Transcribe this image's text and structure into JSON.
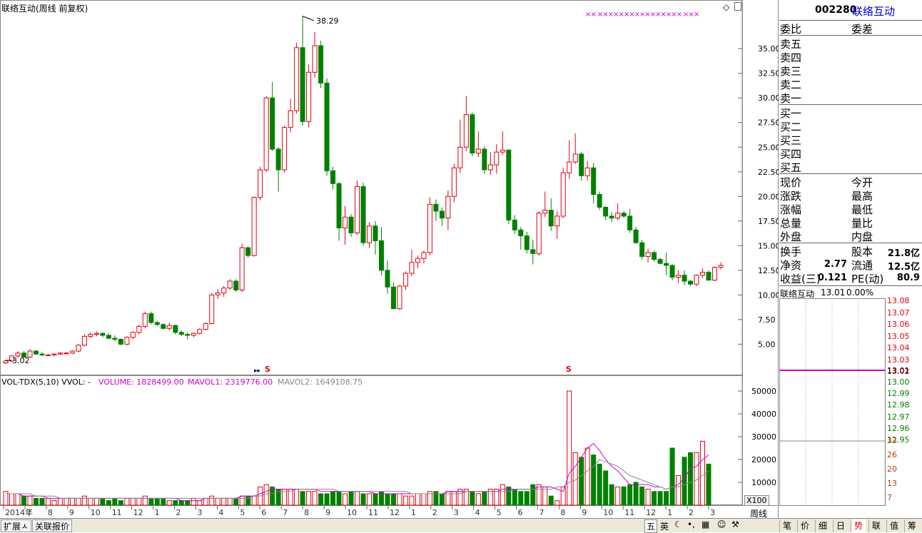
{
  "stock": {
    "code": "002280",
    "name": "联络互动"
  },
  "chart_title": "联络互动(周线 前复权)",
  "price_chart": {
    "high_label": "38.29",
    "low_label": "3.02",
    "y_ticks": [
      "35.00",
      "32.50",
      "30.00",
      "27.50",
      "25.00",
      "22.50",
      "20.00",
      "17.50",
      "15.00",
      "12.50",
      "10.00",
      "7.50",
      "5.00"
    ],
    "x_axis_labels": [
      "2014年",
      "7",
      "8",
      "9",
      "10",
      "11",
      "12",
      "1",
      "2",
      "3",
      "4",
      "5",
      "6",
      "7",
      "8",
      "9",
      "10",
      "11",
      "12",
      "1",
      "2",
      "3",
      "4",
      "5",
      "6",
      "7",
      "8",
      "9",
      "10",
      "11",
      "12",
      "1",
      "2",
      "3"
    ],
    "marker": "S",
    "markers_top": "××  ××××××××××××××××  ×××"
  },
  "volume_chart": {
    "label": "VOL-TDX(5,10) VVOL: -",
    "volume": "VOLUME: 1828499.00",
    "mavol1": "MAVOL1: 2319776.00",
    "mavol2": "MAVOL2: 1649108.75",
    "y_ticks": [
      "50000",
      "40000",
      "30000",
      "20000",
      "10000"
    ],
    "unit": "X100",
    "period": "周线"
  },
  "chart_data": {
    "type": "candlestick",
    "title": "联络互动(周线 前复权)",
    "ylim": [
      3,
      38.5
    ],
    "candles": [
      [
        3.1,
        3.4,
        3.0,
        3.3
      ],
      [
        3.3,
        3.9,
        3.2,
        3.8
      ],
      [
        3.8,
        4.3,
        3.6,
        4.1
      ],
      [
        4.1,
        4.3,
        3.6,
        3.7
      ],
      [
        3.7,
        4.5,
        3.6,
        4.3
      ],
      [
        4.3,
        4.4,
        3.9,
        4.0
      ],
      [
        4.0,
        4.2,
        3.8,
        3.9
      ],
      [
        3.9,
        4.0,
        3.8,
        3.9
      ],
      [
        3.9,
        4.1,
        3.8,
        4.0
      ],
      [
        4.0,
        4.2,
        3.9,
        4.1
      ],
      [
        4.1,
        4.2,
        4.0,
        4.1
      ],
      [
        4.1,
        4.4,
        4.0,
        4.3
      ],
      [
        4.3,
        5.0,
        4.2,
        4.9
      ],
      [
        4.9,
        6.0,
        4.8,
        5.8
      ],
      [
        5.8,
        6.2,
        5.6,
        6.0
      ],
      [
        6.0,
        6.3,
        5.8,
        6.1
      ],
      [
        6.1,
        6.2,
        5.7,
        5.9
      ],
      [
        5.9,
        6.1,
        5.5,
        5.6
      ],
      [
        5.6,
        5.9,
        5.3,
        5.5
      ],
      [
        5.5,
        5.6,
        4.9,
        5.0
      ],
      [
        5.0,
        5.8,
        4.9,
        5.7
      ],
      [
        5.7,
        6.3,
        5.5,
        6.2
      ],
      [
        6.2,
        7.0,
        6.0,
        6.8
      ],
      [
        6.8,
        8.3,
        6.6,
        8.1
      ],
      [
        8.1,
        8.3,
        7.0,
        7.2
      ],
      [
        7.2,
        7.4,
        6.8,
        7.0
      ],
      [
        7.0,
        7.1,
        6.5,
        6.6
      ],
      [
        6.6,
        7.2,
        6.4,
        6.9
      ],
      [
        6.9,
        7.0,
        6.0,
        6.2
      ],
      [
        6.2,
        6.4,
        5.8,
        6.0
      ],
      [
        6.0,
        6.2,
        5.5,
        5.9
      ],
      [
        5.9,
        6.2,
        5.7,
        6.1
      ],
      [
        6.1,
        6.6,
        6.0,
        6.5
      ],
      [
        6.5,
        7.2,
        6.4,
        7.1
      ],
      [
        7.1,
        10.2,
        7.0,
        10.0
      ],
      [
        10.0,
        10.6,
        9.6,
        10.2
      ],
      [
        10.2,
        10.9,
        9.8,
        10.7
      ],
      [
        10.7,
        11.6,
        10.5,
        11.4
      ],
      [
        11.4,
        11.6,
        10.3,
        10.5
      ],
      [
        10.5,
        15.2,
        10.3,
        14.8
      ],
      [
        14.8,
        14.9,
        13.8,
        14.0
      ],
      [
        14.0,
        20.0,
        13.9,
        19.9
      ],
      [
        19.9,
        23.0,
        19.6,
        22.7
      ],
      [
        22.7,
        30.2,
        22.5,
        30.0
      ],
      [
        30.0,
        31.6,
        24.6,
        24.8
      ],
      [
        24.8,
        25.0,
        20.5,
        22.7
      ],
      [
        22.7,
        27.2,
        22.4,
        27.0
      ],
      [
        27.0,
        29.9,
        26.5,
        28.7
      ],
      [
        28.7,
        35.6,
        28.4,
        35.1
      ],
      [
        35.1,
        38.3,
        27.2,
        27.6
      ],
      [
        27.6,
        33.4,
        27.0,
        32.6
      ],
      [
        32.6,
        36.7,
        32.1,
        35.3
      ],
      [
        35.3,
        35.8,
        31.0,
        31.5
      ],
      [
        31.5,
        32.0,
        22.1,
        22.6
      ],
      [
        22.6,
        23.0,
        20.7,
        21.3
      ],
      [
        21.3,
        21.5,
        15.5,
        16.8
      ],
      [
        16.8,
        19.0,
        15.1,
        17.9
      ],
      [
        17.9,
        18.2,
        15.9,
        16.3
      ],
      [
        16.3,
        21.6,
        16.1,
        21.0
      ],
      [
        21.0,
        21.4,
        15.0,
        15.3
      ],
      [
        15.3,
        17.4,
        14.8,
        17.0
      ],
      [
        17.0,
        17.5,
        14.1,
        15.5
      ],
      [
        15.5,
        16.9,
        12.0,
        12.5
      ],
      [
        12.5,
        13.5,
        10.1,
        10.8
      ],
      [
        10.8,
        11.3,
        8.6,
        8.6
      ],
      [
        8.6,
        11.0,
        8.5,
        10.9
      ],
      [
        10.9,
        12.4,
        10.5,
        12.2
      ],
      [
        12.2,
        14.6,
        11.9,
        13.3
      ],
      [
        13.3,
        14.0,
        12.7,
        13.7
      ],
      [
        13.7,
        14.5,
        13.2,
        14.3
      ],
      [
        14.3,
        19.9,
        14.0,
        19.2
      ],
      [
        19.2,
        19.7,
        17.5,
        18.5
      ],
      [
        18.5,
        18.9,
        17.0,
        17.8
      ],
      [
        17.8,
        20.6,
        16.6,
        20.0
      ],
      [
        20.0,
        23.3,
        19.4,
        22.9
      ],
      [
        22.9,
        27.8,
        22.4,
        25.0
      ],
      [
        25.0,
        30.2,
        24.6,
        28.3
      ],
      [
        28.3,
        28.5,
        24.1,
        24.4
      ],
      [
        24.4,
        26.6,
        24.0,
        24.8
      ],
      [
        24.8,
        25.1,
        22.3,
        22.7
      ],
      [
        22.7,
        24.5,
        22.2,
        23.2
      ],
      [
        23.2,
        25.3,
        22.3,
        24.5
      ],
      [
        24.5,
        26.6,
        24.2,
        24.7
      ],
      [
        24.7,
        24.8,
        17.2,
        17.6
      ],
      [
        17.6,
        18.1,
        16.2,
        16.6
      ],
      [
        16.6,
        16.9,
        14.6,
        16.0
      ],
      [
        16.0,
        16.4,
        14.2,
        14.6
      ],
      [
        14.6,
        15.6,
        13.1,
        14.2
      ],
      [
        14.2,
        18.5,
        14.0,
        18.3
      ],
      [
        18.3,
        20.5,
        17.9,
        18.6
      ],
      [
        18.6,
        19.8,
        16.5,
        17.0
      ],
      [
        17.0,
        18.5,
        15.7,
        18.0
      ],
      [
        18.0,
        22.9,
        17.8,
        22.4
      ],
      [
        22.4,
        25.7,
        21.8,
        23.5
      ],
      [
        23.5,
        26.4,
        23.3,
        24.3
      ],
      [
        24.3,
        24.5,
        21.6,
        22.1
      ],
      [
        22.1,
        23.6,
        21.6,
        22.9
      ],
      [
        22.9,
        23.4,
        19.3,
        20.2
      ],
      [
        20.2,
        20.5,
        18.6,
        18.9
      ],
      [
        18.9,
        19.0,
        17.6,
        18.0
      ],
      [
        18.0,
        18.4,
        17.4,
        17.8
      ],
      [
        17.8,
        19.3,
        17.6,
        18.3
      ],
      [
        18.3,
        18.5,
        17.8,
        18.0
      ],
      [
        18.0,
        18.7,
        16.3,
        16.6
      ],
      [
        16.6,
        16.9,
        15.2,
        15.3
      ],
      [
        15.3,
        15.6,
        13.6,
        13.9
      ],
      [
        13.9,
        14.7,
        13.3,
        14.3
      ],
      [
        14.3,
        14.5,
        13.4,
        13.6
      ],
      [
        13.6,
        13.8,
        13.1,
        13.2
      ],
      [
        13.2,
        14.3,
        12.0,
        13.0
      ],
      [
        13.0,
        13.1,
        11.5,
        11.8
      ],
      [
        11.8,
        12.5,
        11.2,
        12.0
      ],
      [
        12.0,
        12.5,
        11.0,
        11.4
      ],
      [
        11.4,
        11.5,
        10.9,
        11.1
      ],
      [
        11.1,
        12.1,
        10.9,
        12.0
      ],
      [
        12.0,
        12.7,
        11.7,
        12.3
      ],
      [
        12.3,
        12.5,
        11.5,
        11.5
      ],
      [
        11.5,
        12.9,
        11.4,
        12.8
      ],
      [
        12.8,
        13.3,
        12.6,
        13.0
      ]
    ],
    "volume": [
      6,
      5,
      5,
      4,
      4,
      3,
      3,
      3,
      2,
      3,
      3,
      3,
      3,
      4,
      3,
      3,
      3,
      2,
      3,
      2,
      3,
      3,
      3,
      4,
      3,
      3,
      3,
      2,
      2,
      2,
      2,
      3,
      2,
      3,
      4,
      3,
      3,
      3,
      3,
      4,
      4,
      4,
      8,
      9,
      8,
      7,
      7,
      7,
      7,
      6,
      6,
      6,
      5,
      5,
      6,
      6,
      5,
      6,
      6,
      5,
      5,
      5,
      6,
      5,
      5,
      5,
      4,
      4,
      5,
      5,
      6,
      6,
      5,
      6,
      6,
      7,
      7,
      6,
      5,
      6,
      7,
      7,
      9,
      8,
      7,
      6,
      6,
      9,
      9,
      8,
      4,
      2,
      8,
      50,
      23,
      21,
      25,
      22,
      18,
      15,
      9,
      8,
      8,
      9,
      10,
      8,
      7,
      6,
      6,
      6,
      25,
      13,
      21,
      23,
      23,
      28,
      18
    ],
    "mavol1": [
      5,
      5,
      5,
      4,
      4,
      4,
      4,
      3,
      3,
      3,
      3,
      3,
      3,
      3,
      3,
      3,
      3,
      3,
      3,
      3,
      3,
      3,
      3,
      3,
      3,
      3,
      3,
      3,
      3,
      2,
      2,
      2,
      2,
      3,
      3,
      3,
      3,
      3,
      3,
      4,
      4,
      4,
      5,
      6,
      7,
      7,
      7,
      7,
      7,
      7,
      7,
      7,
      6,
      6,
      6,
      6,
      6,
      6,
      6,
      6,
      6,
      5,
      5,
      5,
      5,
      5,
      5,
      5,
      5,
      5,
      5,
      5,
      5,
      6,
      6,
      6,
      6,
      6,
      6,
      6,
      6,
      6,
      7,
      7,
      7,
      7,
      7,
      7,
      8,
      8,
      8,
      7,
      6,
      14,
      17,
      21,
      25,
      27,
      24,
      20,
      17,
      15,
      12,
      9,
      9,
      9,
      9,
      8,
      8,
      7,
      8,
      9,
      12,
      16,
      17,
      20,
      22
    ],
    "mavol2": [
      5,
      5,
      5,
      5,
      5,
      4,
      4,
      4,
      4,
      3,
      3,
      3,
      3,
      3,
      3,
      3,
      3,
      3,
      3,
      3,
      3,
      3,
      3,
      3,
      3,
      3,
      3,
      3,
      3,
      3,
      3,
      3,
      3,
      3,
      3,
      3,
      3,
      3,
      3,
      3,
      3,
      4,
      4,
      5,
      5,
      6,
      6,
      6,
      7,
      7,
      7,
      7,
      7,
      7,
      7,
      6,
      6,
      6,
      6,
      6,
      6,
      6,
      6,
      6,
      6,
      6,
      6,
      5,
      5,
      5,
      5,
      5,
      5,
      5,
      5,
      5,
      6,
      6,
      6,
      6,
      6,
      6,
      6,
      6,
      7,
      7,
      7,
      7,
      7,
      7,
      7,
      8,
      8,
      10,
      11,
      13,
      15,
      17,
      20,
      19,
      18,
      17,
      15,
      13,
      12,
      11,
      10,
      9,
      8,
      7,
      8,
      8,
      9,
      10,
      11,
      13,
      15
    ]
  },
  "panel": {
    "weibi": "委比",
    "weicha": "委差",
    "sell_labels": [
      "卖五",
      "卖四",
      "卖三",
      "卖二",
      "卖一"
    ],
    "buy_labels": [
      "买一",
      "买二",
      "买三",
      "买四",
      "买五"
    ],
    "quote_left": [
      "现价",
      "涨跌",
      "涨幅",
      "总量",
      "外盘"
    ],
    "quote_right": [
      "今开",
      "最高",
      "最低",
      "量比",
      "内盘"
    ],
    "fin": [
      {
        "l1": "换手",
        "v1": "",
        "l2": "股本",
        "v2": "21.8亿"
      },
      {
        "l1": "净资",
        "v1": "2.77",
        "l2": "流通",
        "v2": "12.5亿"
      },
      {
        "l1": "收益(三)",
        "v1": "0.121",
        "l2": "PE(动)",
        "v2": "80.9"
      }
    ],
    "mini_title": "联络互动",
    "mini_price": "13.01",
    "mini_pct": "0.00%",
    "mini_prices_up": [
      "13.08",
      "13.07",
      "13.06",
      "13.05",
      "13.04",
      "13.03",
      "13.02"
    ],
    "mini_price_mid": "13.01",
    "mini_prices_down": [
      "13.00",
      "12.99",
      "12.98",
      "12.97",
      "12.96",
      "12.95"
    ],
    "mini_vol_ticks": [
      "33",
      "26",
      "20",
      "13",
      "7"
    ]
  },
  "statusbar": {
    "left_tabs": [
      "扩展ㅅ",
      "关联报价"
    ],
    "ime": [
      "五",
      "英"
    ],
    "bottom_tabs": [
      "笔",
      "价",
      "细",
      "日",
      "势",
      "联",
      "值",
      "筹"
    ],
    "active_tab": "势"
  },
  "colors": {
    "up": "#e0000f",
    "down": "#008000",
    "mavol1": "#d000d0",
    "mavol2": "#888888",
    "blue_name": "#0000d0"
  }
}
